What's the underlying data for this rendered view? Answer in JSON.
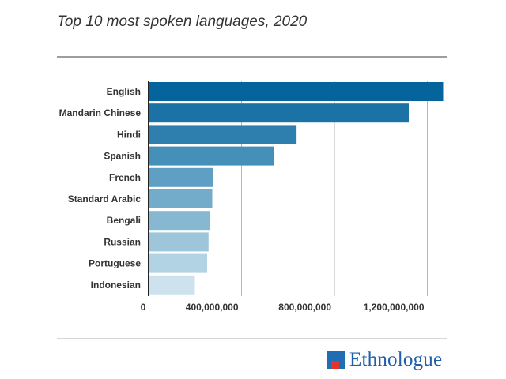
{
  "chart_data": {
    "type": "bar",
    "orientation": "horizontal",
    "title": "Top 10 most spoken languages, 2020",
    "categories": [
      "English",
      "Mandarin Chinese",
      "Hindi",
      "Spanish",
      "French",
      "Standard Arabic",
      "Bengali",
      "Russian",
      "Portuguese",
      "Indonesian"
    ],
    "values": [
      1268000000,
      1120000000,
      637000000,
      538000000,
      277000000,
      274000000,
      265000000,
      258000000,
      252000000,
      199000000
    ],
    "xlim": [
      0,
      1280000000
    ],
    "xticks": [
      0,
      400000000,
      800000000,
      1200000000
    ],
    "xtick_labels": [
      "0",
      "400,000,000",
      "800,000,000",
      "1,200,000,000"
    ],
    "grid": "vertical",
    "legend": "none",
    "colors": [
      "#04649b",
      "#1b73a5",
      "#2f7fae",
      "#4590b8",
      "#5e9fc3",
      "#72acca",
      "#86b8d2",
      "#9dc6db",
      "#b2d3e3",
      "#cde2ec"
    ]
  },
  "source": {
    "name": "Ethnologue",
    "brand_color": "#1f5fa8",
    "accent_color": "#e2342c"
  }
}
